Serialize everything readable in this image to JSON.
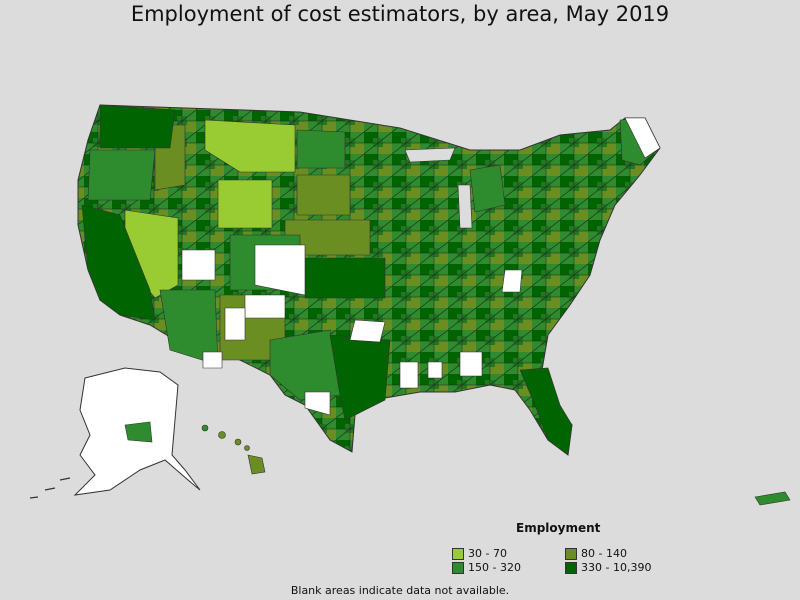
{
  "title": "Employment of cost estimators, by area, May 2019",
  "legend": {
    "title": "Employment",
    "items": [
      {
        "label": "30 - 70",
        "color": "#99cc33"
      },
      {
        "label": "80 - 140",
        "color": "#6b8e23"
      },
      {
        "label": "150 - 320",
        "color": "#2e8b2e"
      },
      {
        "label": "330 - 10,390",
        "color": "#006400"
      }
    ]
  },
  "note": "Blank areas indicate data not available.",
  "colors": {
    "background": "#dcdcdc",
    "no_data": "#ffffff",
    "border": "#333333"
  }
}
